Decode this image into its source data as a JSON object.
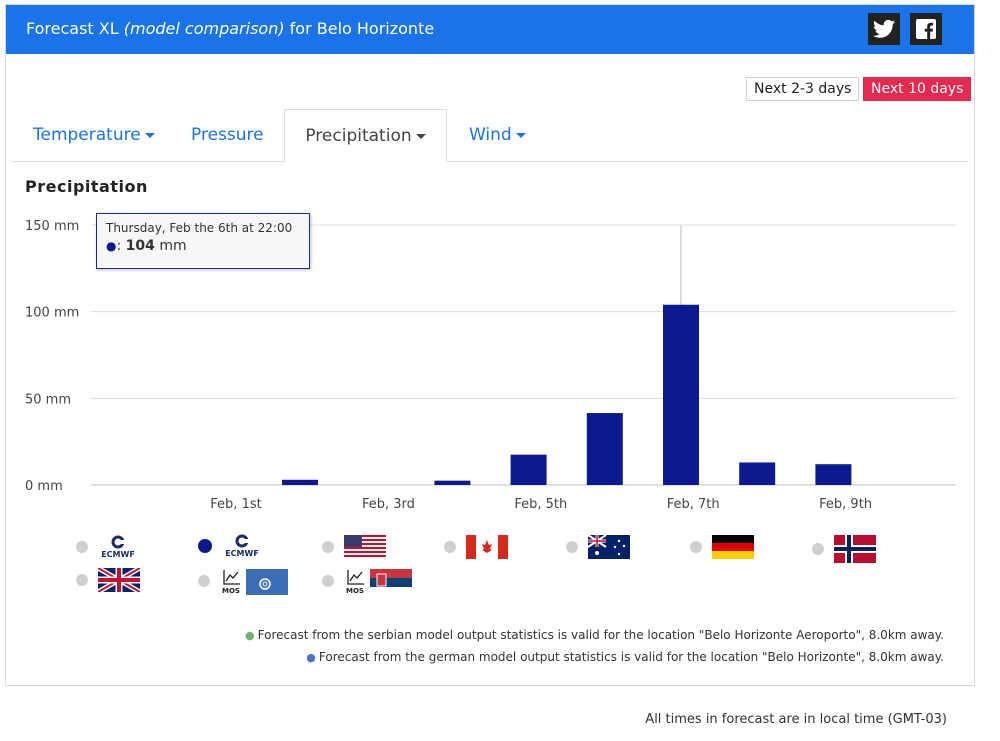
{
  "header": {
    "title_prefix": "Forecast XL",
    "title_italic": "(model comparison)",
    "title_suffix": "for Belo Horizonte",
    "share": [
      {
        "name": "twitter-icon"
      },
      {
        "name": "facebook-icon"
      }
    ]
  },
  "range_buttons": {
    "short": "Next 2-3 days",
    "long": "Next 10 days"
  },
  "tabs": [
    {
      "label": "Temperature",
      "has_dropdown": true,
      "active": false
    },
    {
      "label": "Pressure",
      "has_dropdown": false,
      "active": false
    },
    {
      "label": "Precipitation",
      "has_dropdown": true,
      "active": true
    },
    {
      "label": "Wind",
      "has_dropdown": true,
      "active": false
    }
  ],
  "section_title": "Precipitation",
  "tooltip": {
    "date": "Thursday, Feb the 6th at 22:00",
    "value_prefix": ": ",
    "value": "104",
    "unit": "mm"
  },
  "chart_data": {
    "type": "bar",
    "title": "Precipitation",
    "y_unit": "mm",
    "ylim": [
      0,
      150
    ],
    "y_ticks": [
      {
        "value": 0,
        "label": "0 mm"
      },
      {
        "value": 50,
        "label": "50 mm"
      },
      {
        "value": 100,
        "label": "100 mm"
      },
      {
        "value": 150,
        "label": "150 mm"
      }
    ],
    "x_ticks": [
      "Feb, 1st",
      "Feb, 3rd",
      "Feb, 5th",
      "Feb, 7th",
      "Feb, 9th"
    ],
    "grid": true,
    "bar_color": "#0d1a8f",
    "series": [
      {
        "x": [
          "Jan 31",
          "Feb 1",
          "Feb 2",
          "Feb 3",
          "Feb 4",
          "Feb 5",
          "Feb 6",
          "Feb 7",
          "Feb 8",
          "Feb 9"
        ],
        "values": [
          0,
          3,
          0,
          2.5,
          17.5,
          41.5,
          104,
          13,
          12,
          0
        ]
      }
    ],
    "highlight": {
      "x": "Feb 6",
      "value": 104
    }
  },
  "models": [
    {
      "name": "ecmwf-icon",
      "label": "ECMWF",
      "selected": false
    },
    {
      "name": "ecmwf-icon",
      "label": "ECMWF",
      "selected": true
    },
    {
      "name": "usa-flag-icon",
      "selected": false
    },
    {
      "name": "canada-flag-icon",
      "selected": false
    },
    {
      "name": "australia-flag-icon",
      "selected": false
    },
    {
      "name": "germany-flag-icon",
      "selected": false
    },
    {
      "name": "norway-flag-icon",
      "selected": false
    },
    {
      "name": "uk-flag-icon",
      "selected": false
    },
    {
      "name": "mos-dwd-icon",
      "label": "MOS",
      "selected": false
    },
    {
      "name": "mos-serbia-icon",
      "label": "MOS",
      "selected": false
    }
  ],
  "notes": [
    {
      "text": "Forecast from the serbian model output statistics is valid for the location \"Belo Horizonte Aeroporto\", 8.0km away.",
      "color": "#6db36d"
    },
    {
      "text": "Forecast from the german model output statistics is valid for the location \"Belo Horizonte\", 8.0km away.",
      "color": "#4a74c9"
    }
  ],
  "footer": "All times in forecast are in local time (GMT-03)"
}
